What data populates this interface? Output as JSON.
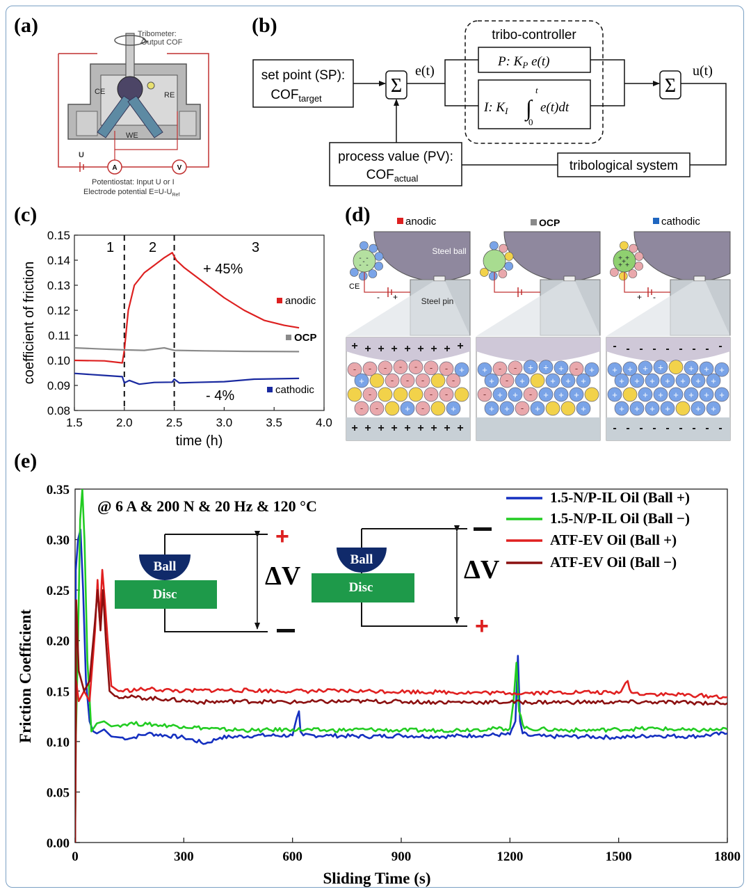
{
  "panels": {
    "a": {
      "label": "(a)",
      "tribometer_l1": "Tribometer:",
      "tribometer_l2": "Output COF",
      "ce": "CE",
      "re": "RE",
      "we": "WE",
      "u": "U",
      "a_meter": "A",
      "v_meter": "V",
      "pot_l1": "Potentiostat: Input U or I",
      "pot_l2": "Electrode potential E=U-U",
      "pot_sub": "Ref"
    },
    "b": {
      "label": "(b)",
      "setpoint_l1": "set point (SP):",
      "setpoint_l2": "COF",
      "setpoint_sub": "target",
      "sigma": "Σ",
      "et": "e(t)",
      "controller_title": "tribo-controller",
      "p_term": "P: K",
      "p_sub": "P",
      "p_rest": " e(t)",
      "i_term": "I: K",
      "i_sub": "I",
      "i_rest": "e(t)dt",
      "int_upper": "t",
      "int_lower": "0",
      "ut": "u(t)",
      "process_l1": "process value (PV):",
      "process_l2": "COF",
      "process_sub": "actual",
      "system": "tribological system"
    },
    "c": {
      "label": "(c)",
      "phase1": "1",
      "phase2": "2",
      "phase3": "3",
      "anno_up": "+ 45%",
      "anno_down": "- 4%"
    },
    "d": {
      "label": "(d)",
      "leg_anodic": "anodic",
      "leg_ocp": "OCP",
      "leg_cathodic": "cathodic",
      "steel_ball": "Steel ball",
      "steel_pin": "Steel pin",
      "ce": "CE",
      "plus": "+",
      "minus": "-"
    },
    "e": {
      "label": "(e)",
      "conditions": "@ 6 A & 200 N & 20 Hz & 120 °C",
      "ball": "Ball",
      "disc": "Disc",
      "dv": "ΔV",
      "plus_sign": "+",
      "minus_sign": "−"
    }
  },
  "colors": {
    "anodic": "#dd2020",
    "ocp": "#8a8a8a",
    "cathodic": "#1a2aa0",
    "blue_e": "#1530c0",
    "green_e": "#22cc22",
    "red_e": "#e02020",
    "darkred_e": "#8b1010",
    "disc": "#1e9a4a",
    "ball": "#102a6a"
  },
  "chart_data": [
    {
      "id": "c",
      "type": "line",
      "xlabel": "time (h)",
      "ylabel": "coefficient of friction",
      "xlim": [
        1.5,
        4.0
      ],
      "ylim": [
        0.08,
        0.15
      ],
      "xticks": [
        "1.5",
        "2.0",
        "2.5",
        "3.0",
        "3.5",
        "4.0"
      ],
      "yticks": [
        "0.08",
        "0.09",
        "0.10",
        "0.11",
        "0.12",
        "0.13",
        "0.14",
        "0.15"
      ],
      "vlines": [
        2.0,
        2.5
      ],
      "series": [
        {
          "name": "anodic",
          "color": "#dd2020",
          "x": [
            1.5,
            1.8,
            1.98,
            2.0,
            2.04,
            2.1,
            2.2,
            2.3,
            2.4,
            2.48,
            2.52,
            2.6,
            2.8,
            3.0,
            3.2,
            3.4,
            3.6,
            3.75
          ],
          "y": [
            0.1,
            0.0998,
            0.099,
            0.104,
            0.12,
            0.13,
            0.135,
            0.138,
            0.141,
            0.143,
            0.14,
            0.137,
            0.131,
            0.125,
            0.12,
            0.116,
            0.114,
            0.113
          ]
        },
        {
          "name": "OCP",
          "color": "#8a8a8a",
          "x": [
            1.5,
            1.8,
            2.0,
            2.2,
            2.4,
            2.5,
            2.8,
            3.2,
            3.75
          ],
          "y": [
            0.105,
            0.1045,
            0.1042,
            0.104,
            0.105,
            0.104,
            0.1038,
            0.1036,
            0.1035
          ]
        },
        {
          "name": "cathodic",
          "color": "#1a2aa0",
          "x": [
            1.5,
            1.8,
            1.98,
            2.0,
            2.05,
            2.15,
            2.3,
            2.48,
            2.5,
            2.55,
            2.7,
            3.0,
            3.3,
            3.75
          ],
          "y": [
            0.0948,
            0.094,
            0.0935,
            0.091,
            0.092,
            0.0905,
            0.0912,
            0.0913,
            0.0925,
            0.091,
            0.0912,
            0.0915,
            0.0925,
            0.0928
          ]
        }
      ]
    },
    {
      "id": "e",
      "type": "line",
      "xlabel": "Sliding Time (s)",
      "ylabel": "Friction Coefficient",
      "xlim": [
        0,
        1800
      ],
      "ylim": [
        0.0,
        0.35
      ],
      "xticks": [
        "0",
        "300",
        "600",
        "900",
        "1200",
        "1500",
        "1800"
      ],
      "yticks": [
        "0.00",
        "0.05",
        "0.10",
        "0.15",
        "0.20",
        "0.25",
        "0.30",
        "0.35"
      ],
      "series": [
        {
          "name": "1.5-N/P-IL Oil (Ball +)",
          "color": "#1530c0",
          "x": [
            0,
            2,
            8,
            15,
            22,
            30,
            40,
            50,
            60,
            80,
            100,
            150,
            200,
            300,
            360,
            400,
            500,
            600,
            618,
            622,
            630,
            700,
            800,
            900,
            1000,
            1100,
            1200,
            1215,
            1222,
            1228,
            1235,
            1250,
            1300,
            1400,
            1500,
            1600,
            1700,
            1800
          ],
          "y": [
            0.0,
            0.27,
            0.3,
            0.31,
            0.25,
            0.16,
            0.12,
            0.11,
            0.108,
            0.112,
            0.105,
            0.103,
            0.108,
            0.104,
            0.098,
            0.104,
            0.106,
            0.106,
            0.13,
            0.11,
            0.106,
            0.106,
            0.105,
            0.106,
            0.105,
            0.106,
            0.107,
            0.12,
            0.185,
            0.12,
            0.108,
            0.106,
            0.105,
            0.105,
            0.104,
            0.106,
            0.105,
            0.108
          ]
        },
        {
          "name": "1.5-N/P-IL Oil (Ball −)",
          "color": "#22cc22",
          "x": [
            0,
            2,
            8,
            14,
            20,
            26,
            34,
            45,
            60,
            80,
            100,
            150,
            200,
            300,
            400,
            500,
            600,
            700,
            800,
            900,
            1000,
            1100,
            1200,
            1210,
            1218,
            1225,
            1240,
            1300,
            1400,
            1500,
            1600,
            1700,
            1800
          ],
          "y": [
            0.0,
            0.1,
            0.2,
            0.32,
            0.35,
            0.3,
            0.18,
            0.11,
            0.118,
            0.12,
            0.115,
            0.118,
            0.117,
            0.115,
            0.112,
            0.111,
            0.112,
            0.111,
            0.112,
            0.111,
            0.111,
            0.112,
            0.113,
            0.14,
            0.178,
            0.13,
            0.113,
            0.112,
            0.111,
            0.112,
            0.113,
            0.111,
            0.112
          ]
        },
        {
          "name": "ATF-EV Oil (Ball +)",
          "color": "#e02020",
          "x": [
            0,
            3,
            10,
            25,
            40,
            55,
            62,
            68,
            75,
            82,
            90,
            100,
            120,
            200,
            300,
            400,
            600,
            800,
            1000,
            1200,
            1400,
            1500,
            1525,
            1530,
            1540,
            1600,
            1700,
            1800
          ],
          "y": [
            0.0,
            0.16,
            0.14,
            0.15,
            0.14,
            0.21,
            0.26,
            0.22,
            0.27,
            0.24,
            0.2,
            0.155,
            0.15,
            0.152,
            0.15,
            0.151,
            0.15,
            0.15,
            0.149,
            0.148,
            0.149,
            0.148,
            0.16,
            0.152,
            0.148,
            0.147,
            0.146,
            0.144
          ]
        },
        {
          "name": "ATF-EV Oil (Ball −)",
          "color": "#8b1010",
          "x": [
            0,
            3,
            10,
            25,
            40,
            55,
            62,
            70,
            77,
            85,
            95,
            110,
            150,
            250,
            350,
            450,
            600,
            800,
            1000,
            1200,
            1400,
            1600,
            1800
          ],
          "y": [
            0.0,
            0.24,
            0.17,
            0.15,
            0.16,
            0.22,
            0.25,
            0.21,
            0.25,
            0.2,
            0.15,
            0.145,
            0.144,
            0.142,
            0.139,
            0.14,
            0.139,
            0.14,
            0.139,
            0.139,
            0.139,
            0.139,
            0.138
          ]
        }
      ]
    }
  ]
}
